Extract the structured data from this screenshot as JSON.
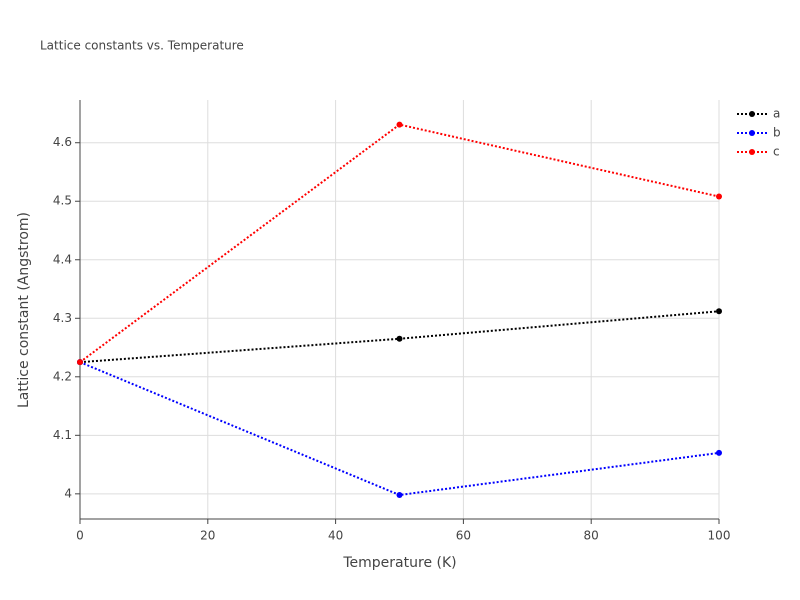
{
  "chart_data": {
    "type": "line",
    "title": "Lattice constants vs. Temperature",
    "x_label": "Temperature (K)",
    "y_label": "Lattice constant (Angstrom)",
    "x": [
      0,
      50,
      100
    ],
    "series": [
      {
        "name": "a",
        "color": "#000000",
        "values": [
          4.225,
          4.265,
          4.312
        ]
      },
      {
        "name": "b",
        "color": "#0000ff",
        "values": [
          4.225,
          3.998,
          4.07
        ]
      },
      {
        "name": "c",
        "color": "#ff0000",
        "values": [
          4.225,
          4.631,
          4.508
        ]
      }
    ],
    "xlim": [
      0,
      100
    ],
    "xticks": [
      0,
      20,
      40,
      60,
      80,
      100
    ],
    "ylim": [
      3.957,
      4.673
    ],
    "yticks": [
      4,
      4.1,
      4.2,
      4.3,
      4.4,
      4.5,
      4.6
    ],
    "grid": true,
    "legend": "top-right",
    "line_style": "dotted"
  }
}
